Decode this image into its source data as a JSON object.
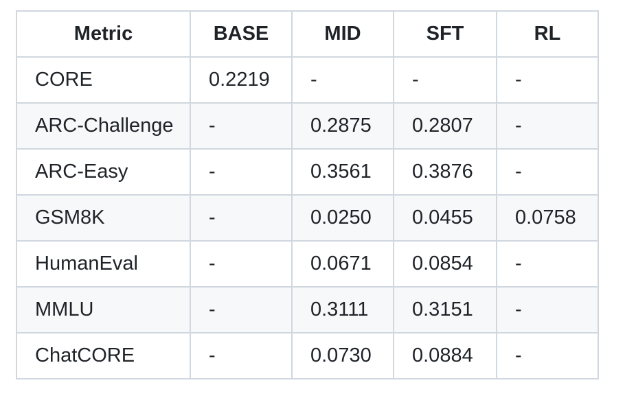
{
  "colors": {
    "background": "#ffffff",
    "border": "#d0d7de",
    "alt_row_background": "#f6f8fa",
    "text": "#1f2328"
  },
  "table": {
    "columns": [
      "Metric",
      "BASE",
      "MID",
      "SFT",
      "RL"
    ],
    "rows": [
      {
        "metric": "CORE",
        "values": [
          "0.2219",
          "-",
          "-",
          "-"
        ]
      },
      {
        "metric": "ARC-Challenge",
        "values": [
          "-",
          "0.2875",
          "0.2807",
          "-"
        ]
      },
      {
        "metric": "ARC-Easy",
        "values": [
          "-",
          "0.3561",
          "0.3876",
          "-"
        ]
      },
      {
        "metric": "GSM8K",
        "values": [
          "-",
          "0.0250",
          "0.0455",
          "0.0758"
        ]
      },
      {
        "metric": "HumanEval",
        "values": [
          "-",
          "0.0671",
          "0.0854",
          "-"
        ]
      },
      {
        "metric": "MMLU",
        "values": [
          "-",
          "0.3111",
          "0.3151",
          "-"
        ]
      },
      {
        "metric": "ChatCORE",
        "values": [
          "-",
          "0.0730",
          "0.0884",
          "-"
        ]
      }
    ]
  },
  "chart_data": {
    "type": "table",
    "columns": [
      "Metric",
      "BASE",
      "MID",
      "SFT",
      "RL"
    ],
    "rows": [
      [
        "CORE",
        "0.2219",
        "-",
        "-",
        "-"
      ],
      [
        "ARC-Challenge",
        "-",
        "0.2875",
        "0.2807",
        "-"
      ],
      [
        "ARC-Easy",
        "-",
        "0.3561",
        "0.3876",
        "-"
      ],
      [
        "GSM8K",
        "-",
        "0.0250",
        "0.0455",
        "0.0758"
      ],
      [
        "HumanEval",
        "-",
        "0.0671",
        "0.0854",
        "-"
      ],
      [
        "MMLU",
        "-",
        "0.3111",
        "0.3151",
        "-"
      ],
      [
        "ChatCORE",
        "-",
        "0.0730",
        "0.0884",
        "-"
      ]
    ],
    "notes": {
      "numeric_series": [
        {
          "name": "BASE",
          "values": [
            0.2219,
            null,
            null,
            null,
            null,
            null,
            null
          ]
        },
        {
          "name": "MID",
          "values": [
            null,
            0.2875,
            0.3561,
            0.025,
            0.0671,
            0.3111,
            0.073
          ]
        },
        {
          "name": "SFT",
          "values": [
            null,
            0.2807,
            0.3876,
            0.0455,
            0.0854,
            0.3151,
            0.0884
          ]
        },
        {
          "name": "RL",
          "values": [
            null,
            null,
            null,
            0.0758,
            null,
            null,
            null
          ]
        }
      ],
      "categories": [
        "CORE",
        "ARC-Challenge",
        "ARC-Easy",
        "GSM8K",
        "HumanEval",
        "MMLU",
        "ChatCORE"
      ]
    }
  }
}
